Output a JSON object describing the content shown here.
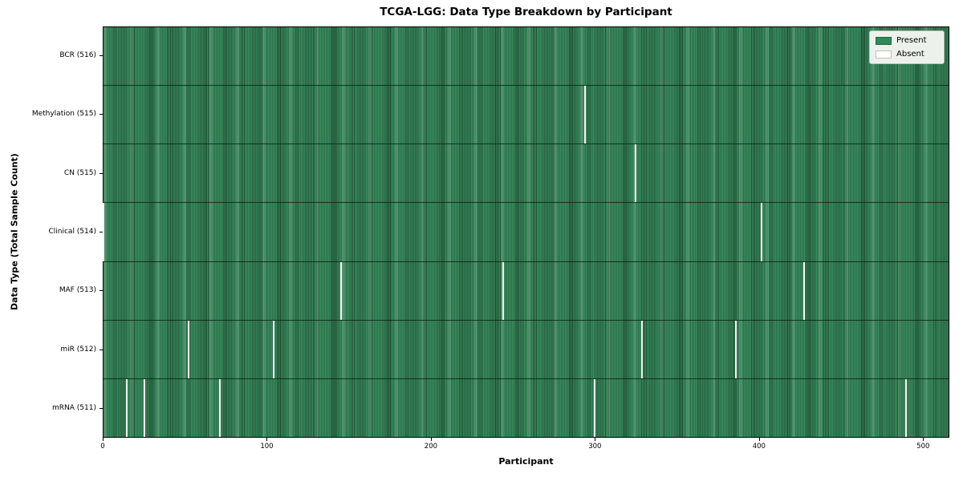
{
  "figure": {
    "title": "TCGA-LGG: Data Type Breakdown by Participant",
    "xlabel": "Participant",
    "ylabel": "Data Type (Total Sample Count)"
  },
  "legend": {
    "items": [
      {
        "label": "Present",
        "color": "#2e8b57"
      },
      {
        "label": "Absent",
        "color": "#ffffff"
      }
    ]
  },
  "colors": {
    "present_fill": "#2e8b57",
    "present_edge": "#1e5132",
    "absent_gap": "#f4f5f1",
    "legend_bg": "#edf1ec",
    "legend_border": "#b9beb9",
    "spine": "#000000"
  },
  "chart_data": {
    "type": "heatmap",
    "title": "TCGA-LGG: Data Type Breakdown by Participant",
    "xlabel": "Participant",
    "ylabel": "Data Type (Total Sample Count)",
    "x_ticks": [
      0,
      100,
      200,
      300,
      400,
      500
    ],
    "x_range": [
      0,
      516
    ],
    "total_participants": 516,
    "grid": false,
    "legend_entries": [
      "Present",
      "Absent"
    ],
    "legend_position": "upper right",
    "value_encoding": {
      "present": "green bar",
      "absent": "white gap"
    },
    "rows": [
      {
        "label": "BCR (516)",
        "data_type": "BCR",
        "sample_count": 516,
        "absent_participants": []
      },
      {
        "label": "Methylation (515)",
        "data_type": "Methylation",
        "sample_count": 515,
        "absent_participants": [
          294
        ]
      },
      {
        "label": "CN (515)",
        "data_type": "CN",
        "sample_count": 515,
        "absent_participants": [
          325
        ]
      },
      {
        "label": "Clinical (514)",
        "data_type": "Clinical",
        "sample_count": 514,
        "absent_participants": [
          0,
          402
        ]
      },
      {
        "label": "MAF (513)",
        "data_type": "MAF",
        "sample_count": 513,
        "absent_participants": [
          145,
          244,
          428
        ]
      },
      {
        "label": "miR (512)",
        "data_type": "miR",
        "sample_count": 512,
        "absent_participants": [
          52,
          104,
          329,
          386
        ]
      },
      {
        "label": "mRNA (511)",
        "data_type": "mRNA",
        "sample_count": 511,
        "absent_participants": [
          14,
          25,
          71,
          300,
          490
        ]
      }
    ]
  }
}
